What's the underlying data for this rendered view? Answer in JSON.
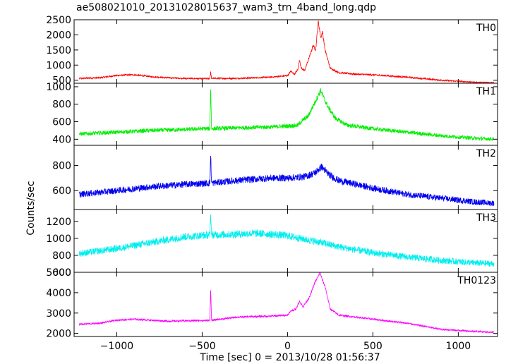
{
  "chart_data": {
    "type": "line",
    "title": "ae508021010_20131028015637_wam3_trn_4band_long.qdp",
    "xlabel": "Time [sec] 0 = 2013/10/28 01:56:37",
    "ylabel": "Counts/sec",
    "xlim": [
      -1250,
      1230
    ],
    "xticks": [
      -1000,
      -500,
      0,
      500,
      1000
    ],
    "xtick_labels": [
      "−1000",
      "−500",
      "0",
      "500",
      "1000"
    ],
    "grid": false,
    "panels": [
      {
        "name": "TH0",
        "color": "#ff0000",
        "ylim": [
          400,
          2500
        ],
        "yticks": [
          500,
          1000,
          1500,
          2000,
          2500
        ],
        "noise": 25,
        "points": [
          [
            -1220,
            560
          ],
          [
            -1100,
            580
          ],
          [
            -1000,
            660
          ],
          [
            -900,
            680
          ],
          [
            -800,
            620
          ],
          [
            -700,
            580
          ],
          [
            -600,
            560
          ],
          [
            -500,
            550
          ],
          [
            -455,
            560
          ],
          [
            -450,
            780
          ],
          [
            -445,
            560
          ],
          [
            -300,
            560
          ],
          [
            -100,
            600
          ],
          [
            0,
            650
          ],
          [
            20,
            800
          ],
          [
            40,
            700
          ],
          [
            60,
            850
          ],
          [
            70,
            1150
          ],
          [
            80,
            900
          ],
          [
            100,
            820
          ],
          [
            130,
            1300
          ],
          [
            150,
            1650
          ],
          [
            165,
            1500
          ],
          [
            180,
            2450
          ],
          [
            195,
            1900
          ],
          [
            205,
            2100
          ],
          [
            220,
            1500
          ],
          [
            250,
            900
          ],
          [
            300,
            750
          ],
          [
            400,
            700
          ],
          [
            500,
            680
          ],
          [
            700,
            600
          ],
          [
            900,
            500
          ],
          [
            1100,
            430
          ],
          [
            1210,
            420
          ]
        ]
      },
      {
        "name": "TH1",
        "color": "#00ee00",
        "ylim": [
          330,
          1040
        ],
        "yticks": [
          400,
          600,
          800,
          1000
        ],
        "noise": 22,
        "points": [
          [
            -1220,
            460
          ],
          [
            -1000,
            480
          ],
          [
            -800,
            500
          ],
          [
            -600,
            510
          ],
          [
            -500,
            520
          ],
          [
            -455,
            520
          ],
          [
            -450,
            1020
          ],
          [
            -445,
            520
          ],
          [
            -300,
            530
          ],
          [
            -100,
            540
          ],
          [
            0,
            550
          ],
          [
            60,
            560
          ],
          [
            90,
            620
          ],
          [
            120,
            660
          ],
          [
            150,
            780
          ],
          [
            180,
            900
          ],
          [
            195,
            960
          ],
          [
            210,
            880
          ],
          [
            240,
            760
          ],
          [
            280,
            640
          ],
          [
            350,
            560
          ],
          [
            500,
            520
          ],
          [
            700,
            480
          ],
          [
            900,
            440
          ],
          [
            1100,
            410
          ],
          [
            1210,
            400
          ]
        ]
      },
      {
        "name": "TH2",
        "color": "#0000ee",
        "ylim": [
          450,
          960
        ],
        "yticks": [
          600,
          800
        ],
        "noise": 25,
        "points": [
          [
            -1220,
            570
          ],
          [
            -1000,
            600
          ],
          [
            -800,
            630
          ],
          [
            -600,
            650
          ],
          [
            -455,
            660
          ],
          [
            -450,
            900
          ],
          [
            -445,
            660
          ],
          [
            -300,
            680
          ],
          [
            -100,
            700
          ],
          [
            0,
            700
          ],
          [
            100,
            710
          ],
          [
            160,
            740
          ],
          [
            200,
            790
          ],
          [
            240,
            730
          ],
          [
            300,
            680
          ],
          [
            500,
            620
          ],
          [
            700,
            570
          ],
          [
            900,
            540
          ],
          [
            1100,
            510
          ],
          [
            1210,
            500
          ]
        ]
      },
      {
        "name": "TH3",
        "color": "#00eeee",
        "ylim": [
          600,
          1340
        ],
        "yticks": [
          600,
          800,
          1000,
          1200
        ],
        "noise": 40,
        "points": [
          [
            -1220,
            820
          ],
          [
            -1000,
            880
          ],
          [
            -800,
            950
          ],
          [
            -600,
            1020
          ],
          [
            -455,
            1040
          ],
          [
            -450,
            1300
          ],
          [
            -445,
            1040
          ],
          [
            -300,
            1050
          ],
          [
            -200,
            1060
          ],
          [
            -100,
            1050
          ],
          [
            0,
            1030
          ],
          [
            100,
            990
          ],
          [
            200,
            950
          ],
          [
            300,
            900
          ],
          [
            500,
            830
          ],
          [
            700,
            780
          ],
          [
            900,
            740
          ],
          [
            1100,
            710
          ],
          [
            1210,
            700
          ]
        ]
      },
      {
        "name": "TH0123",
        "color": "#ff00ff",
        "ylim": [
          1850,
          5000
        ],
        "yticks": [
          2000,
          3000,
          4000,
          5000
        ],
        "noise": 40,
        "points": [
          [
            -1220,
            2450
          ],
          [
            -1100,
            2500
          ],
          [
            -1000,
            2650
          ],
          [
            -900,
            2700
          ],
          [
            -800,
            2650
          ],
          [
            -700,
            2600
          ],
          [
            -600,
            2620
          ],
          [
            -455,
            2640
          ],
          [
            -450,
            4300
          ],
          [
            -445,
            2640
          ],
          [
            -300,
            2800
          ],
          [
            -100,
            2850
          ],
          [
            0,
            2900
          ],
          [
            20,
            3100
          ],
          [
            50,
            3200
          ],
          [
            70,
            3600
          ],
          [
            90,
            3300
          ],
          [
            130,
            3800
          ],
          [
            160,
            4500
          ],
          [
            180,
            4800
          ],
          [
            190,
            5000
          ],
          [
            205,
            4600
          ],
          [
            220,
            4300
          ],
          [
            250,
            3200
          ],
          [
            300,
            2900
          ],
          [
            500,
            2700
          ],
          [
            700,
            2500
          ],
          [
            900,
            2200
          ],
          [
            1100,
            2100
          ],
          [
            1210,
            2050
          ]
        ]
      }
    ]
  }
}
